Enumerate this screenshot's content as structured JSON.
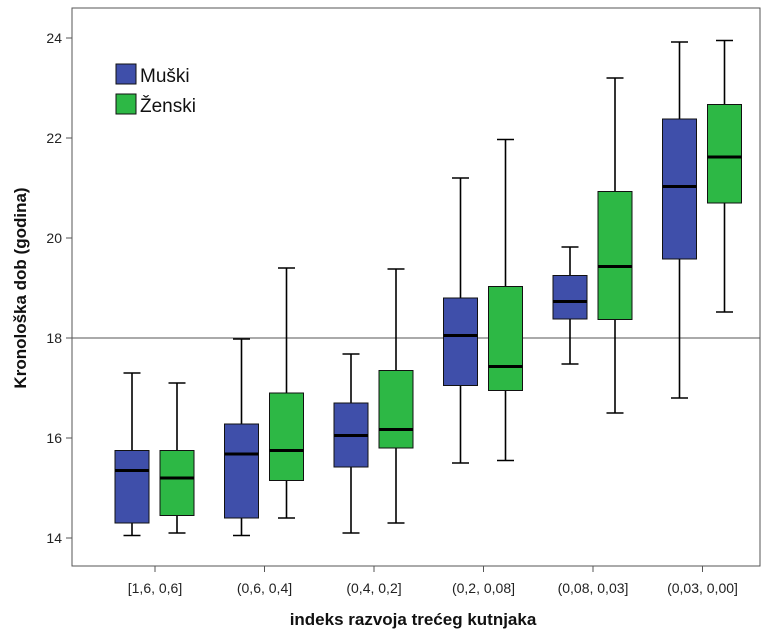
{
  "chart_data": {
    "type": "boxplot",
    "xlabel": "indeks razvoja trećeg kutnjaka",
    "ylabel": "Kronološka dob (godina)",
    "ylim": [
      13.5,
      24.5
    ],
    "yticks": [
      14,
      16,
      18,
      20,
      22,
      24
    ],
    "reference_line": 18,
    "grid": false,
    "legend_position": "top-left",
    "categories": [
      "[1,6,  0,6]",
      "(0,6,  0,4]",
      "(0,4,  0,2]",
      "(0,2,  0,08]",
      "(0,08,  0,03]",
      "(0,03,  0,00]"
    ],
    "series": [
      {
        "name": "Muški",
        "color": "#3f4faa",
        "boxes": [
          {
            "min": 14.05,
            "q1": 14.3,
            "median": 15.35,
            "q3": 15.75,
            "max": 17.3
          },
          {
            "min": 14.05,
            "q1": 14.4,
            "median": 15.68,
            "q3": 16.28,
            "max": 17.98
          },
          {
            "min": 14.1,
            "q1": 15.42,
            "median": 16.05,
            "q3": 16.7,
            "max": 17.68
          },
          {
            "min": 15.5,
            "q1": 17.05,
            "median": 18.05,
            "q3": 18.8,
            "max": 21.2
          },
          {
            "min": 17.48,
            "q1": 18.38,
            "median": 18.73,
            "q3": 19.25,
            "max": 19.82
          },
          {
            "min": 16.8,
            "q1": 19.58,
            "median": 21.03,
            "q3": 22.38,
            "max": 23.92
          }
        ]
      },
      {
        "name": "Ženski",
        "color": "#2db845",
        "boxes": [
          {
            "min": 14.1,
            "q1": 14.45,
            "median": 15.2,
            "q3": 15.75,
            "max": 17.1
          },
          {
            "min": 14.4,
            "q1": 15.15,
            "median": 15.75,
            "q3": 16.9,
            "max": 19.4
          },
          {
            "min": 14.3,
            "q1": 15.8,
            "median": 16.17,
            "q3": 17.35,
            "max": 19.38
          },
          {
            "min": 15.55,
            "q1": 16.95,
            "median": 17.43,
            "q3": 19.03,
            "max": 21.97
          },
          {
            "min": 16.5,
            "q1": 18.37,
            "median": 19.43,
            "q3": 20.93,
            "max": 23.2
          },
          {
            "min": 18.52,
            "q1": 20.7,
            "median": 21.62,
            "q3": 22.67,
            "max": 23.95
          }
        ]
      }
    ]
  }
}
